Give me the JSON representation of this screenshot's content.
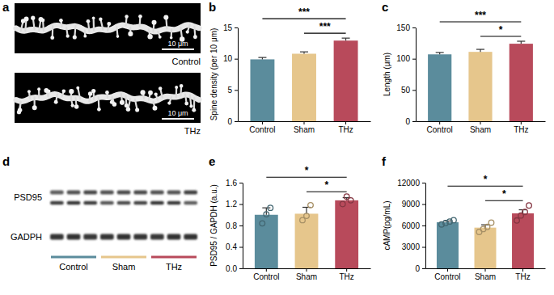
{
  "chart_data": [
    {
      "panel": "b",
      "type": "bar",
      "categories": [
        "Control",
        "Sham",
        "THz"
      ],
      "values": [
        9.9,
        10.8,
        12.9
      ],
      "errors": [
        0.3,
        0.3,
        0.4
      ],
      "colors": [
        "#5b8c9c",
        "#e6c68c",
        "#b84a5b"
      ],
      "ylabel": "Spine density (per 10 μm)",
      "ylim": [
        0,
        15
      ],
      "yticks": [
        0,
        5,
        10,
        15
      ],
      "annotations": [
        {
          "between": [
            "Sham",
            "THz"
          ],
          "text": "***"
        },
        {
          "between": [
            "Control",
            "THz"
          ],
          "text": "***"
        }
      ]
    },
    {
      "panel": "c",
      "type": "bar",
      "categories": [
        "Control",
        "Sham",
        "THz"
      ],
      "values": [
        107,
        111,
        124
      ],
      "errors": [
        3,
        4,
        4
      ],
      "colors": [
        "#5b8c9c",
        "#e6c68c",
        "#b84a5b"
      ],
      "ylabel": "Length (μm)",
      "ylim": [
        0,
        150
      ],
      "yticks": [
        0,
        50,
        100,
        150
      ],
      "annotations": [
        {
          "between": [
            "Sham",
            "THz"
          ],
          "text": "*"
        },
        {
          "between": [
            "Control",
            "THz"
          ],
          "text": "***"
        }
      ]
    },
    {
      "panel": "e",
      "type": "bar",
      "categories": [
        "Control",
        "Sham",
        "THz"
      ],
      "values": [
        1.0,
        1.02,
        1.27
      ],
      "errors": [
        0.13,
        0.12,
        0.05
      ],
      "points": [
        [
          0.84,
          1.01,
          1.13
        ],
        [
          0.9,
          0.98,
          1.18
        ],
        [
          1.2,
          1.34,
          1.27
        ]
      ],
      "colors": [
        "#5b8c9c",
        "#e6c68c",
        "#b84a5b"
      ],
      "ylabel": "PSD95 / GAPDH (a.u.)",
      "ylim": [
        0,
        1.6
      ],
      "yticks": [
        {
          "value": 0,
          "label": "0.0"
        },
        0.4,
        0.8,
        1.2,
        1.6
      ],
      "annotations": [
        {
          "between": [
            "Sham",
            "THz"
          ],
          "text": "*"
        },
        {
          "between": [
            "Control",
            "THz"
          ],
          "text": "*"
        }
      ]
    },
    {
      "panel": "f",
      "type": "bar",
      "categories": [
        "Control",
        "Sham",
        "THz"
      ],
      "values": [
        6450,
        5700,
        7700
      ],
      "errors": [
        180,
        400,
        500
      ],
      "points": [
        [
          6150,
          6350,
          6550,
          6750
        ],
        [
          5100,
          5500,
          5800,
          6400
        ],
        [
          6700,
          7400,
          7900,
          8800
        ]
      ],
      "colors": [
        "#5b8c9c",
        "#e6c68c",
        "#b84a5b"
      ],
      "ylabel": "cAMP(pg/mL)",
      "ylim": [
        0,
        12000
      ],
      "yticks": [
        0,
        3000,
        6000,
        9000,
        12000
      ],
      "annotations": [
        {
          "between": [
            "Sham",
            "THz"
          ],
          "text": "*"
        },
        {
          "between": [
            "Control",
            "THz"
          ],
          "text": "*"
        }
      ]
    }
  ],
  "images": {
    "panel": "a",
    "items": [
      {
        "label": "Control",
        "scale_bar": "10 μm"
      },
      {
        "label": "THz",
        "scale_bar": "10 μm"
      }
    ]
  },
  "blot": {
    "panel": "d",
    "rows": [
      "PSD95",
      "GADPH"
    ],
    "groups": [
      {
        "name": "Control",
        "color": "#5b8c9c"
      },
      {
        "name": "Sham",
        "color": "#e6c68c"
      },
      {
        "name": "THz",
        "color": "#b84a5b"
      }
    ]
  }
}
